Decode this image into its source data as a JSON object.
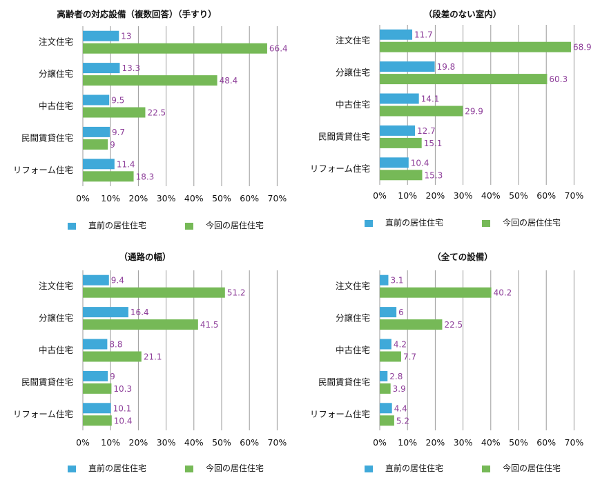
{
  "colors": {
    "before": "#3fa9d9",
    "current": "#76b957",
    "grid": "#9a9a9a",
    "label": "#8e3f9a"
  },
  "legend": {
    "before": "直前の居住住宅",
    "current": "今回の居住住宅"
  },
  "chart_data": [
    {
      "type": "bar",
      "orientation": "horizontal",
      "title": "高齢者の対応設備（複数回答）（手すり）",
      "categories": [
        "注文住宅",
        "分譲住宅",
        "中古住宅",
        "民間賃貸住宅",
        "リフォーム住宅"
      ],
      "series": [
        {
          "name": "直前の居住住宅",
          "values": [
            13,
            13.3,
            9.5,
            9.7,
            11.4
          ]
        },
        {
          "name": "今回の居住住宅",
          "values": [
            66.4,
            48.4,
            22.5,
            9,
            18.3
          ]
        }
      ],
      "xlim": [
        0,
        70
      ],
      "ticks": [
        "0%",
        "10%",
        "20%",
        "30%",
        "40%",
        "50%",
        "60%",
        "70%"
      ],
      "legend_position": "bottom"
    },
    {
      "type": "bar",
      "orientation": "horizontal",
      "title": "（段差のない室内）",
      "categories": [
        "注文住宅",
        "分譲住宅",
        "中古住宅",
        "民間賃貸住宅",
        "リフォーム住宅"
      ],
      "series": [
        {
          "name": "直前の居住住宅",
          "values": [
            11.7,
            19.8,
            14.1,
            12.7,
            10.4
          ]
        },
        {
          "name": "今回の居住住宅",
          "values": [
            68.9,
            60.3,
            29.9,
            15.1,
            15.3
          ]
        }
      ],
      "xlim": [
        0,
        70
      ],
      "ticks": [
        "0%",
        "10%",
        "20%",
        "30%",
        "40%",
        "50%",
        "60%",
        "70%"
      ],
      "legend_position": "bottom"
    },
    {
      "type": "bar",
      "orientation": "horizontal",
      "title": "（通路の幅）",
      "categories": [
        "注文住宅",
        "分譲住宅",
        "中古住宅",
        "民間賃貸住宅",
        "リフォーム住宅"
      ],
      "series": [
        {
          "name": "直前の居住住宅",
          "values": [
            9.4,
            16.4,
            8.8,
            9,
            10.1
          ]
        },
        {
          "name": "今回の居住住宅",
          "values": [
            51.2,
            41.5,
            21.1,
            10.3,
            10.4
          ]
        }
      ],
      "xlim": [
        0,
        70
      ],
      "ticks": [
        "0%",
        "10%",
        "20%",
        "30%",
        "40%",
        "50%",
        "60%",
        "70%"
      ],
      "legend_position": "bottom"
    },
    {
      "type": "bar",
      "orientation": "horizontal",
      "title": "（全ての設備）",
      "categories": [
        "注文住宅",
        "分譲住宅",
        "中古住宅",
        "民間賃貸住宅",
        "リフォーム住宅"
      ],
      "series": [
        {
          "name": "直前の居住住宅",
          "values": [
            3.1,
            6,
            4.2,
            2.8,
            4.4
          ]
        },
        {
          "name": "今回の居住住宅",
          "values": [
            40.2,
            22.5,
            7.7,
            3.9,
            5.2
          ]
        }
      ],
      "xlim": [
        0,
        70
      ],
      "ticks": [
        "0%",
        "10%",
        "20%",
        "30%",
        "40%",
        "50%",
        "60%",
        "70%"
      ],
      "legend_position": "bottom"
    }
  ]
}
